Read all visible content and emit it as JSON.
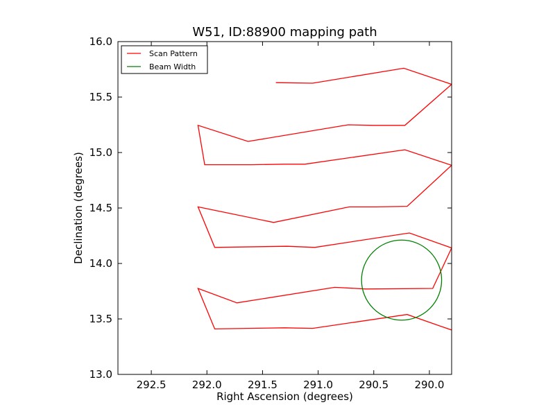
{
  "chart_data": {
    "type": "line",
    "title": "W51, ID:88900 mapping path",
    "xlabel": "Right Ascension (degrees)",
    "ylabel": "Declination (degrees)",
    "xlim": [
      292.8,
      289.8
    ],
    "ylim": [
      13.0,
      16.0
    ],
    "x_inverted": true,
    "grid": false,
    "legend_position": "top-left",
    "x_ticks": [
      292.5,
      292.0,
      291.5,
      291.0,
      290.5,
      290.0
    ],
    "x_tick_labels": [
      "292.5",
      "292.0",
      "291.5",
      "291.0",
      "290.5",
      "290.0"
    ],
    "y_ticks": [
      13.0,
      13.5,
      14.0,
      14.5,
      15.0,
      15.5,
      16.0
    ],
    "y_tick_labels": [
      "13.0",
      "13.5",
      "14.0",
      "14.5",
      "15.0",
      "15.5",
      "16.0"
    ],
    "series": [
      {
        "name": "Scan Pattern",
        "color": "#ff0000",
        "points": [
          [
            289.8,
            13.4
          ],
          [
            290.2,
            13.54
          ],
          [
            291.05,
            13.415
          ],
          [
            291.3,
            13.42
          ],
          [
            291.93,
            13.41
          ],
          [
            292.08,
            13.775
          ],
          [
            291.73,
            13.645
          ],
          [
            290.85,
            13.785
          ],
          [
            290.57,
            13.77
          ],
          [
            289.97,
            13.775
          ],
          [
            289.8,
            14.14
          ],
          [
            290.18,
            14.275
          ],
          [
            291.03,
            14.145
          ],
          [
            291.28,
            14.155
          ],
          [
            291.93,
            14.145
          ],
          [
            292.08,
            14.51
          ],
          [
            291.4,
            14.37
          ],
          [
            290.72,
            14.51
          ],
          [
            290.48,
            14.51
          ],
          [
            290.2,
            14.515
          ],
          [
            289.8,
            14.885
          ],
          [
            290.22,
            15.025
          ],
          [
            291.12,
            14.895
          ],
          [
            291.3,
            14.895
          ],
          [
            291.6,
            14.89
          ],
          [
            292.02,
            14.89
          ],
          [
            292.08,
            15.245
          ],
          [
            291.63,
            15.1
          ],
          [
            290.73,
            15.25
          ],
          [
            290.5,
            15.245
          ],
          [
            290.22,
            15.245
          ],
          [
            289.8,
            15.615
          ],
          [
            290.23,
            15.76
          ],
          [
            291.05,
            15.625
          ],
          [
            291.38,
            15.63
          ]
        ]
      },
      {
        "name": "Beam Width",
        "color": "#008000",
        "shape": "circle",
        "center": [
          290.25,
          13.85
        ],
        "radius": 0.36
      }
    ]
  }
}
